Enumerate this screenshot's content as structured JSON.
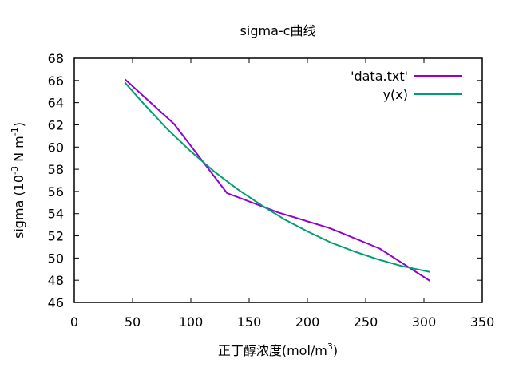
{
  "chart_data": {
    "type": "line",
    "title": "sigma-c曲线",
    "xlabel_main": "正丁醇浓度(mol/m",
    "xlabel_sup": "3",
    "xlabel_close": ")",
    "ylabel_main": "sigma (10",
    "ylabel_sup1": "-3",
    "ylabel_mid": " N m",
    "ylabel_sup2": "-1",
    "ylabel_close": ")",
    "xlim": [
      0,
      350
    ],
    "ylim": [
      46,
      68
    ],
    "xticks": [
      0,
      50,
      100,
      150,
      200,
      250,
      300,
      350
    ],
    "yticks": [
      46,
      48,
      50,
      52,
      54,
      56,
      58,
      60,
      62,
      64,
      66,
      68
    ],
    "legend_position": "top-right",
    "series": [
      {
        "name": "'data.txt'",
        "color": "#9400d3",
        "x": [
          43.5,
          85.5,
          131,
          175,
          219,
          262,
          305
        ],
        "y": [
          66.1,
          62.1,
          55.85,
          54.1,
          52.7,
          50.85,
          47.95
        ]
      },
      {
        "name": "y(x)",
        "color": "#009e73",
        "x": [
          43.5,
          60,
          80,
          100,
          120,
          140,
          160,
          180,
          200,
          220,
          240,
          260,
          280,
          305
        ],
        "y": [
          65.8,
          63.85,
          61.6,
          59.6,
          57.8,
          56.2,
          54.8,
          53.5,
          52.4,
          51.4,
          50.6,
          49.9,
          49.3,
          48.75
        ]
      }
    ]
  }
}
